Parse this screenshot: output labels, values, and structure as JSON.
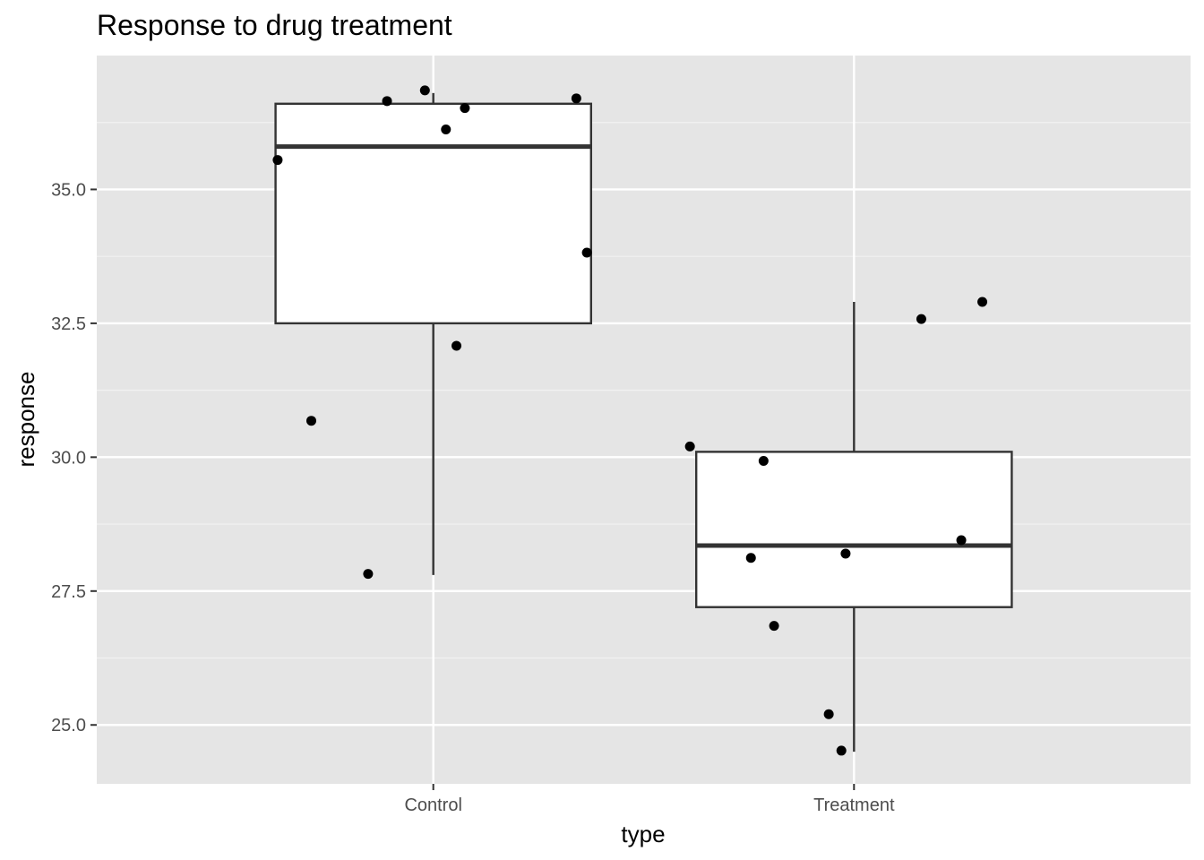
{
  "chart_data": {
    "type": "boxplot",
    "title": "Response to drug treatment",
    "xlabel": "type",
    "ylabel": "response",
    "categories": [
      "Control",
      "Treatment"
    ],
    "ylim": [
      23.9,
      37.5
    ],
    "y_ticks": [
      25.0,
      27.5,
      30.0,
      32.5,
      35.0
    ],
    "y_tick_labels": [
      "25.0",
      "27.5",
      "30.0",
      "32.5",
      "35.0"
    ],
    "grid": true,
    "legend": "none",
    "colors": {
      "panel_background": "#e5e5e5",
      "grid_major": "#ffffff",
      "grid_minor": "#f2f2f2",
      "box_fill": "#ffffff",
      "box_line": "#333333",
      "point": "#000000"
    },
    "boxes": [
      {
        "category": "Control",
        "whisker_low": 27.8,
        "q1": 32.5,
        "median": 35.8,
        "q3": 36.6,
        "whisker_high": 36.8
      },
      {
        "category": "Treatment",
        "whisker_low": 24.5,
        "q1": 27.2,
        "median": 28.35,
        "q3": 30.1,
        "whisker_high": 32.9
      }
    ],
    "points": [
      {
        "category": "Control",
        "jitter": -0.37,
        "y": 35.55
      },
      {
        "category": "Control",
        "jitter": -0.29,
        "y": 30.68
      },
      {
        "category": "Control",
        "jitter": -0.155,
        "y": 27.82
      },
      {
        "category": "Control",
        "jitter": -0.11,
        "y": 36.65
      },
      {
        "category": "Control",
        "jitter": -0.02,
        "y": 36.85
      },
      {
        "category": "Control",
        "jitter": 0.03,
        "y": 36.12
      },
      {
        "category": "Control",
        "jitter": 0.055,
        "y": 32.08
      },
      {
        "category": "Control",
        "jitter": 0.075,
        "y": 36.52
      },
      {
        "category": "Control",
        "jitter": 0.34,
        "y": 36.7
      },
      {
        "category": "Control",
        "jitter": 0.365,
        "y": 33.82
      },
      {
        "category": "Treatment",
        "jitter": -0.39,
        "y": 30.2
      },
      {
        "category": "Treatment",
        "jitter": -0.245,
        "y": 28.12
      },
      {
        "category": "Treatment",
        "jitter": -0.215,
        "y": 29.93
      },
      {
        "category": "Treatment",
        "jitter": -0.19,
        "y": 26.85
      },
      {
        "category": "Treatment",
        "jitter": -0.06,
        "y": 25.2
      },
      {
        "category": "Treatment",
        "jitter": -0.03,
        "y": 24.52
      },
      {
        "category": "Treatment",
        "jitter": -0.02,
        "y": 28.2
      },
      {
        "category": "Treatment",
        "jitter": 0.16,
        "y": 32.58
      },
      {
        "category": "Treatment",
        "jitter": 0.255,
        "y": 28.45
      },
      {
        "category": "Treatment",
        "jitter": 0.305,
        "y": 32.9
      }
    ]
  }
}
